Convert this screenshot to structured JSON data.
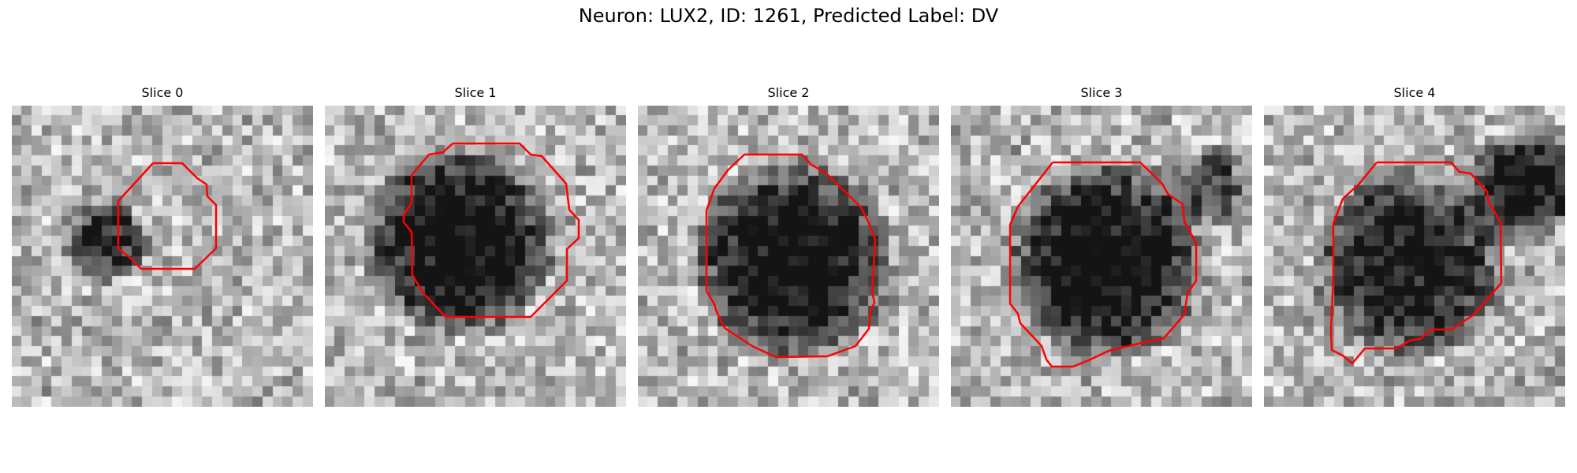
{
  "figure": {
    "title": "Neuron: LUX2, ID: 1261, Predicted Label: DV"
  },
  "colors": {
    "background": "#ffffff",
    "contour": "#ff0000"
  },
  "panels": [
    {
      "title": "Slice 0",
      "content": "grayscale microscopy patch with small red polygon contour around darker cell region"
    },
    {
      "title": "Slice 1",
      "content": "grayscale microscopy patch with dark round cell body outlined by red polygon"
    },
    {
      "title": "Slice 2",
      "content": "grayscale microscopy patch with large dark round cell body outlined by red polygon"
    },
    {
      "title": "Slice 3",
      "content": "grayscale microscopy patch with large dark round cell body outlined by red polygon"
    },
    {
      "title": "Slice 4",
      "content": "grayscale microscopy patch with dark cell body outlined by red polygon, dark region at top-right"
    }
  ]
}
